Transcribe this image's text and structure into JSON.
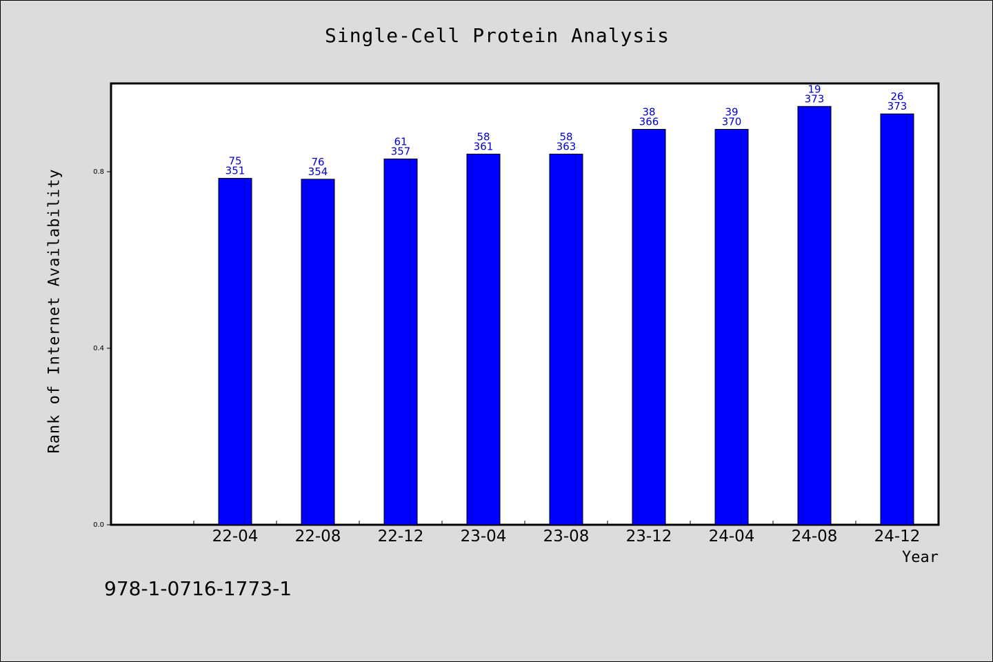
{
  "chart_data": {
    "type": "bar",
    "title": "Single-Cell Protein Analysis",
    "xlabel": "Year",
    "ylabel": "Rank of Internet Availability",
    "categories": [
      "22-04",
      "22-08",
      "22-12",
      "23-04",
      "23-08",
      "23-12",
      "24-04",
      "24-08",
      "24-12"
    ],
    "values": [
      0.785,
      0.783,
      0.829,
      0.84,
      0.84,
      0.896,
      0.896,
      0.948,
      0.931
    ],
    "labels_top": [
      "75",
      "76",
      "61",
      "58",
      "58",
      "38",
      "39",
      "19",
      "26"
    ],
    "labels_bottom": [
      "351",
      "354",
      "357",
      "361",
      "363",
      "366",
      "370",
      "373",
      "373"
    ],
    "yticks": [
      "0.0",
      "0.4",
      "0.8"
    ],
    "ylim": [
      0,
      1.0
    ],
    "grid": false,
    "bar_color": "#0000ff",
    "label_color": "#0000cc"
  },
  "footer": {
    "code": "978-1-0716-1773-1"
  }
}
